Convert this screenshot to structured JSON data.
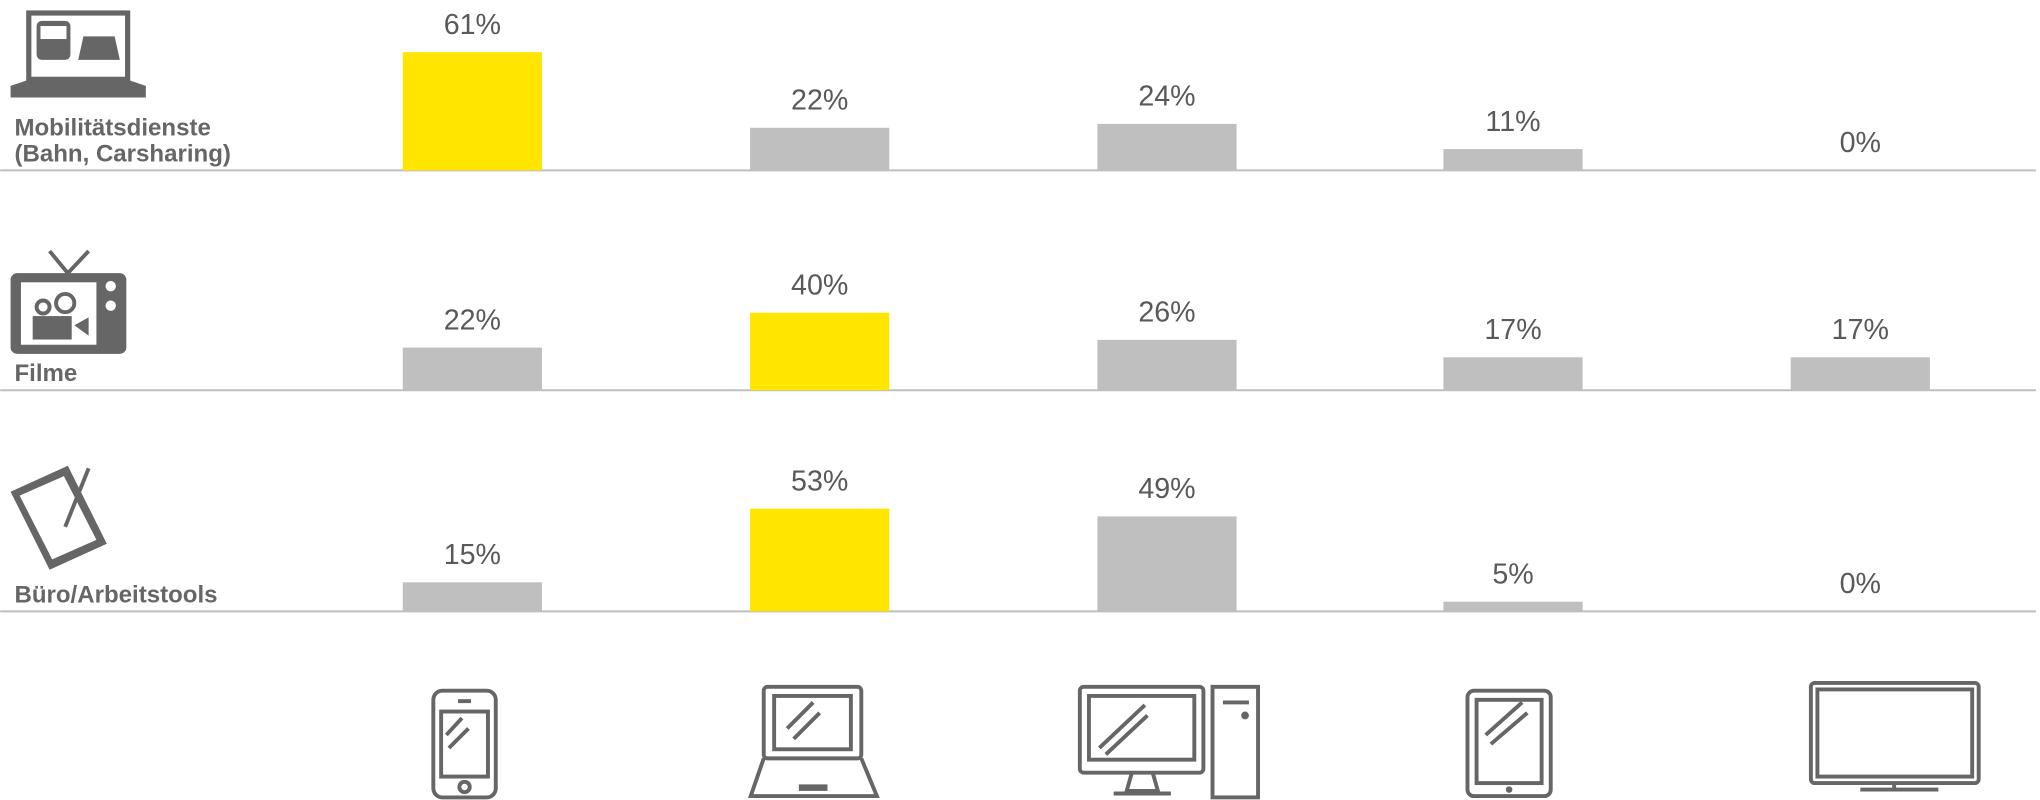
{
  "chart_data": [
    {
      "type": "bar",
      "title": [
        "Mobilitätsdienste",
        "(Bahn, Carsharing)"
      ],
      "categories": [
        null,
        null,
        null,
        null,
        null
      ],
      "values": [
        61,
        22,
        24,
        11,
        0
      ],
      "value_labels": [
        "61%",
        "22%",
        "24%",
        "11%",
        "0%"
      ],
      "colors": [
        "#ffe500",
        "#bfbfbf",
        "#bfbfbf",
        "#bfbfbf",
        "#bfbfbf"
      ]
    },
    {
      "type": "bar",
      "title": [
        "Filme"
      ],
      "categories": [
        null,
        null,
        null,
        null,
        null
      ],
      "values": [
        22,
        40,
        26,
        17,
        17
      ],
      "value_labels": [
        "22%",
        "40%",
        "26%",
        "17%",
        "17%"
      ],
      "colors": [
        "#bfbfbf",
        "#ffe500",
        "#bfbfbf",
        "#bfbfbf",
        "#bfbfbf"
      ]
    },
    {
      "type": "bar",
      "title": [
        "Büro/Arbeitstools"
      ],
      "categories": [
        null,
        null,
        null,
        null,
        null
      ],
      "values": [
        15,
        53,
        49,
        5,
        0
      ],
      "value_labels": [
        "15%",
        "53%",
        "49%",
        "5%",
        "0%"
      ],
      "colors": [
        "#bfbfbf",
        "#ffe500",
        "#bfbfbf",
        "#bfbfbf",
        "#bfbfbf"
      ]
    }
  ]
}
